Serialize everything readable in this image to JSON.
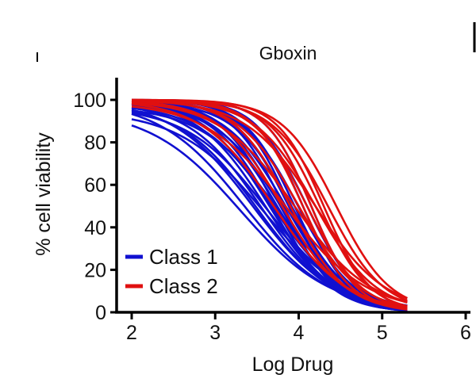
{
  "chart_data": {
    "type": "line",
    "title": "Gboxin",
    "xlabel": "Log Drug",
    "ylabel": "% cell viability",
    "xlim": [
      2,
      6
    ],
    "ylim": [
      0,
      100
    ],
    "x_ticks": [
      "2",
      "3",
      "4",
      "5",
      "6"
    ],
    "y_ticks": [
      "0",
      "20",
      "40",
      "60",
      "80",
      "100"
    ],
    "x_range_plotted": [
      2,
      5.3
    ],
    "legend": {
      "position": "lower-left",
      "entries": [
        {
          "label": "Class 1",
          "color": "#1010d0"
        },
        {
          "label": "Class 2",
          "color": "#e01010"
        }
      ]
    },
    "grid": false,
    "series": [
      {
        "class": "Class 1",
        "color": "#1010d0",
        "ec50": 3.35,
        "hill": 0.85,
        "top": 100
      },
      {
        "class": "Class 1",
        "color": "#1010d0",
        "ec50": 3.45,
        "hill": 0.9,
        "top": 100
      },
      {
        "class": "Class 1",
        "color": "#1010d0",
        "ec50": 3.5,
        "hill": 0.95,
        "top": 98
      },
      {
        "class": "Class 1",
        "color": "#1010d0",
        "ec50": 3.55,
        "hill": 1.0,
        "top": 99
      },
      {
        "class": "Class 1",
        "color": "#1010d0",
        "ec50": 3.6,
        "hill": 1.05,
        "top": 100
      },
      {
        "class": "Class 1",
        "color": "#1010d0",
        "ec50": 3.62,
        "hill": 0.9,
        "top": 97
      },
      {
        "class": "Class 1",
        "color": "#1010d0",
        "ec50": 3.65,
        "hill": 1.1,
        "top": 100
      },
      {
        "class": "Class 1",
        "color": "#1010d0",
        "ec50": 3.68,
        "hill": 1.2,
        "top": 99
      },
      {
        "class": "Class 1",
        "color": "#1010d0",
        "ec50": 3.7,
        "hill": 1.0,
        "top": 98
      },
      {
        "class": "Class 1",
        "color": "#1010d0",
        "ec50": 3.72,
        "hill": 1.3,
        "top": 100
      },
      {
        "class": "Class 1",
        "color": "#1010d0",
        "ec50": 3.75,
        "hill": 1.15,
        "top": 99
      },
      {
        "class": "Class 1",
        "color": "#1010d0",
        "ec50": 3.78,
        "hill": 1.25,
        "top": 100
      },
      {
        "class": "Class 1",
        "color": "#1010d0",
        "ec50": 3.8,
        "hill": 1.1,
        "top": 98
      },
      {
        "class": "Class 1",
        "color": "#1010d0",
        "ec50": 3.82,
        "hill": 1.4,
        "top": 100
      },
      {
        "class": "Class 1",
        "color": "#1010d0",
        "ec50": 3.85,
        "hill": 1.2,
        "top": 99
      },
      {
        "class": "Class 1",
        "color": "#1010d0",
        "ec50": 3.88,
        "hill": 1.35,
        "top": 100
      },
      {
        "class": "Class 1",
        "color": "#1010d0",
        "ec50": 3.9,
        "hill": 1.5,
        "top": 100
      },
      {
        "class": "Class 1",
        "color": "#1010d0",
        "ec50": 3.92,
        "hill": 1.25,
        "top": 99
      },
      {
        "class": "Class 1",
        "color": "#1010d0",
        "ec50": 3.95,
        "hill": 1.45,
        "top": 100
      },
      {
        "class": "Class 1",
        "color": "#1010d0",
        "ec50": 4.0,
        "hill": 1.3,
        "top": 99
      },
      {
        "class": "Class 1",
        "color": "#1010d0",
        "ec50": 4.05,
        "hill": 1.55,
        "top": 100
      },
      {
        "class": "Class 1",
        "color": "#1010d0",
        "ec50": 4.1,
        "hill": 1.4,
        "top": 100
      },
      {
        "class": "Class 1",
        "color": "#1010d0",
        "ec50": 4.15,
        "hill": 1.6,
        "top": 100
      },
      {
        "class": "Class 1",
        "color": "#1010d0",
        "ec50": 3.3,
        "hill": 0.8,
        "top": 96
      },
      {
        "class": "Class 1",
        "color": "#1010d0",
        "ec50": 3.58,
        "hill": 0.85,
        "top": 95
      },
      {
        "class": "Class 1",
        "color": "#1010d0",
        "ec50": 3.75,
        "hill": 0.95,
        "top": 97
      },
      {
        "class": "Class 2",
        "color": "#e01010",
        "ec50": 3.7,
        "hill": 1.0,
        "top": 100
      },
      {
        "class": "Class 2",
        "color": "#e01010",
        "ec50": 3.8,
        "hill": 1.15,
        "top": 100
      },
      {
        "class": "Class 2",
        "color": "#e01010",
        "ec50": 3.9,
        "hill": 1.3,
        "top": 100
      },
      {
        "class": "Class 2",
        "color": "#e01010",
        "ec50": 4.0,
        "hill": 1.2,
        "top": 100
      },
      {
        "class": "Class 2",
        "color": "#e01010",
        "ec50": 4.05,
        "hill": 1.5,
        "top": 100
      },
      {
        "class": "Class 2",
        "color": "#e01010",
        "ec50": 4.1,
        "hill": 1.35,
        "top": 100
      },
      {
        "class": "Class 2",
        "color": "#e01010",
        "ec50": 4.15,
        "hill": 1.6,
        "top": 100
      },
      {
        "class": "Class 2",
        "color": "#e01010",
        "ec50": 4.2,
        "hill": 1.2,
        "top": 100
      },
      {
        "class": "Class 2",
        "color": "#e01010",
        "ec50": 4.25,
        "hill": 1.45,
        "top": 100
      },
      {
        "class": "Class 2",
        "color": "#e01010",
        "ec50": 4.3,
        "hill": 1.55,
        "top": 100
      },
      {
        "class": "Class 2",
        "color": "#e01010",
        "ec50": 4.35,
        "hill": 1.3,
        "top": 100
      },
      {
        "class": "Class 2",
        "color": "#e01010",
        "ec50": 4.45,
        "hill": 1.35,
        "top": 100
      },
      {
        "class": "Class 2",
        "color": "#e01010",
        "ec50": 3.95,
        "hill": 0.95,
        "top": 100
      },
      {
        "class": "Class 2",
        "color": "#e01010",
        "ec50": 4.2,
        "hill": 1.05,
        "top": 100
      },
      {
        "class": "Class 2",
        "color": "#e01010",
        "ec50": 3.85,
        "hill": 0.9,
        "top": 99
      }
    ]
  }
}
